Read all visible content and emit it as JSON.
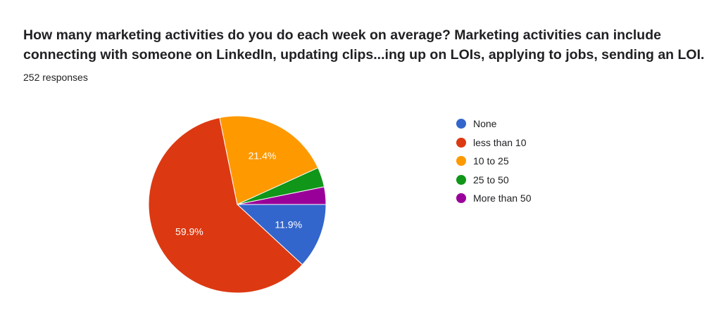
{
  "question": {
    "line1": "How many marketing activities do you do each week on average? Marketing activities can include",
    "line2": "connecting with someone on LinkedIn, updating clips...ing up on LOIs, applying to jobs, sending an LOI."
  },
  "responses_text": "252 responses",
  "chart_data": {
    "type": "pie",
    "total_responses": 252,
    "slices": [
      {
        "name": "None",
        "percent": 11.9,
        "color": "#3366cc",
        "label": "11.9%"
      },
      {
        "name": "less than 10",
        "percent": 59.9,
        "color": "#dc3912",
        "label": "59.9%"
      },
      {
        "name": "10 to 25",
        "percent": 21.4,
        "color": "#ff9900",
        "label": "21.4%"
      },
      {
        "name": "25 to 50",
        "percent": 3.6,
        "color": "#109618",
        "label": ""
      },
      {
        "name": "More than 50",
        "percent": 3.2,
        "color": "#990099",
        "label": ""
      }
    ],
    "legend_position": "right"
  }
}
